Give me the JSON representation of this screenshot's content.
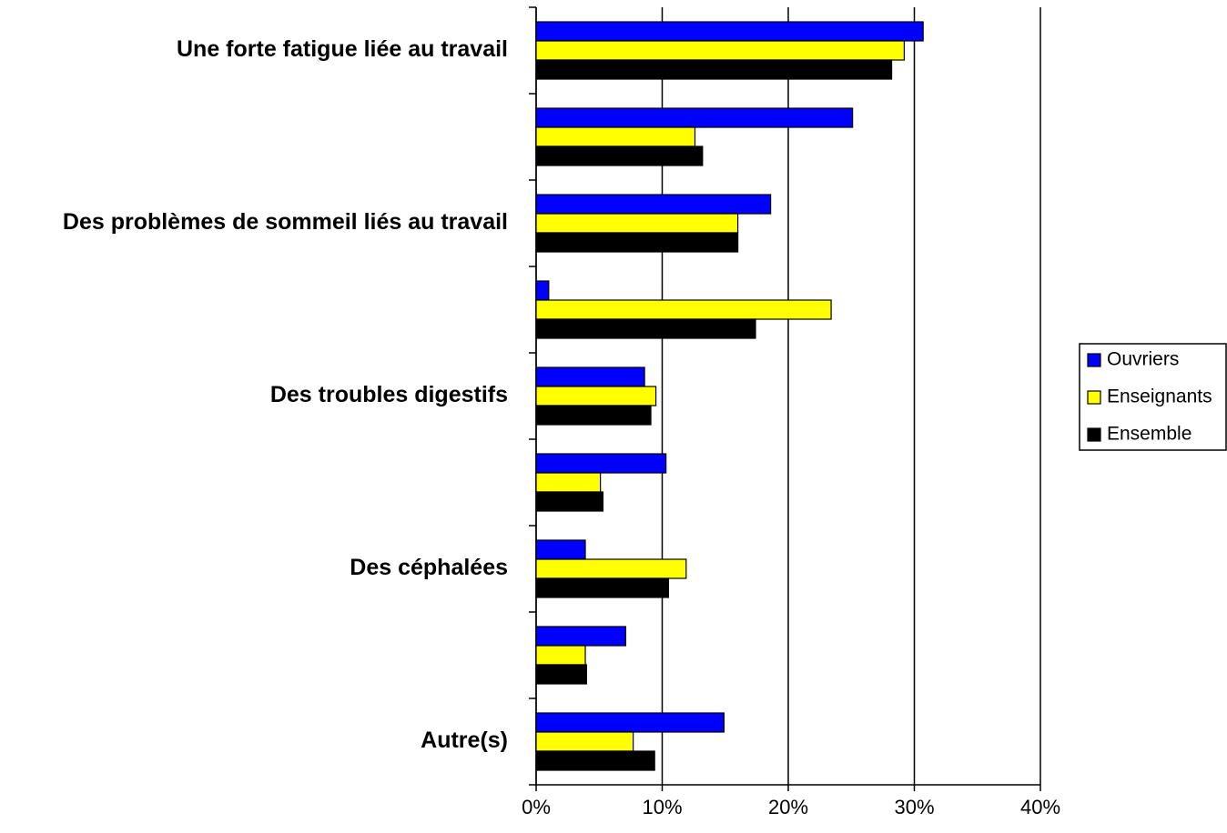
{
  "chart_data": {
    "type": "barh",
    "categories": [
      "Une forte fatigue liée au travail",
      null,
      "Des problèmes de sommeil liés au travail",
      null,
      "Des troubles digestifs",
      null,
      "Des céphalées",
      null,
      "Autre(s)"
    ],
    "series": [
      {
        "name": "Ouvriers",
        "color": "#0000ff",
        "values": [
          30.7,
          25.1,
          18.6,
          1.0,
          8.6,
          10.3,
          3.9,
          7.1,
          14.9
        ]
      },
      {
        "name": "Enseignants",
        "color": "#ffff00",
        "values": [
          29.2,
          12.6,
          16.0,
          23.4,
          9.5,
          5.1,
          11.9,
          3.9,
          7.7
        ]
      },
      {
        "name": "Ensemble",
        "color": "#000000",
        "values": [
          28.2,
          13.2,
          16.0,
          17.4,
          9.1,
          5.3,
          10.5,
          4.0,
          9.4
        ]
      }
    ],
    "xlim": [
      0,
      40
    ],
    "xticks": [
      {
        "value": 0,
        "label": "0%"
      },
      {
        "value": 10,
        "label": "10%"
      },
      {
        "value": 20,
        "label": "20%"
      },
      {
        "value": 30,
        "label": "30%"
      },
      {
        "value": 40,
        "label": "40%"
      }
    ],
    "grid": true,
    "legend": "right"
  }
}
